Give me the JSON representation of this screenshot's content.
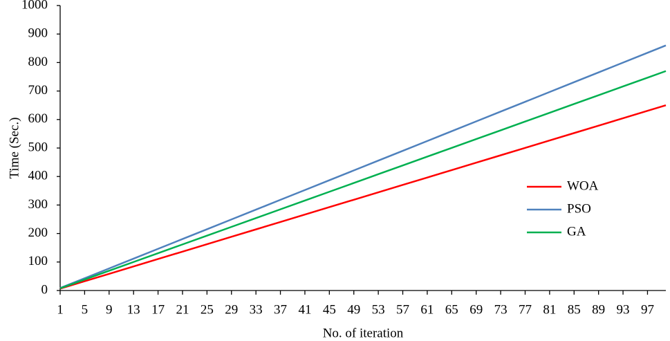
{
  "chart_data": {
    "type": "line",
    "x_label": "No. of iteration",
    "y_label": "Time (Sec.)",
    "x": [
      1,
      5,
      9,
      13,
      17,
      21,
      25,
      29,
      33,
      37,
      41,
      45,
      49,
      53,
      57,
      61,
      65,
      69,
      73,
      77,
      81,
      85,
      89,
      93,
      97,
      100
    ],
    "series": [
      {
        "name": "WOA",
        "color": "#ff0000",
        "values": [
          6.5,
          32.5,
          58.5,
          84.5,
          110.5,
          136.5,
          162.5,
          188.5,
          214.5,
          240.5,
          266.5,
          292.5,
          318.5,
          344.5,
          370.5,
          396.5,
          422.5,
          448.5,
          474.5,
          500.5,
          526.5,
          552.5,
          578.5,
          604.5,
          630.5,
          650
        ]
      },
      {
        "name": "PSO",
        "color": "#4f81bd",
        "values": [
          8.6,
          43,
          77.4,
          111.8,
          146.2,
          180.6,
          215,
          249.4,
          283.8,
          318.2,
          352.6,
          387,
          421.4,
          455.8,
          490.2,
          524.6,
          559,
          593.4,
          627.8,
          662.2,
          696.6,
          731,
          765.4,
          799.8,
          834.2,
          860
        ]
      },
      {
        "name": "GA",
        "color": "#00b050",
        "values": [
          7.7,
          38.5,
          69.3,
          100.1,
          130.9,
          161.7,
          192.5,
          223.3,
          254.1,
          284.9,
          315.7,
          346.5,
          377.3,
          408.1,
          438.9,
          469.7,
          500.5,
          531.3,
          562.1,
          592.9,
          623.7,
          654.5,
          685.3,
          716.1,
          746.9,
          770
        ]
      }
    ],
    "xlim": [
      1,
      100
    ],
    "xticks": [
      1,
      5,
      9,
      13,
      17,
      21,
      25,
      29,
      33,
      37,
      41,
      45,
      49,
      53,
      57,
      61,
      65,
      69,
      73,
      77,
      81,
      85,
      89,
      93,
      97
    ],
    "ylim": [
      0,
      1000
    ],
    "yticks": [
      0,
      100,
      200,
      300,
      400,
      500,
      600,
      700,
      800,
      900,
      1000
    ],
    "grid": false,
    "legend": "right"
  }
}
